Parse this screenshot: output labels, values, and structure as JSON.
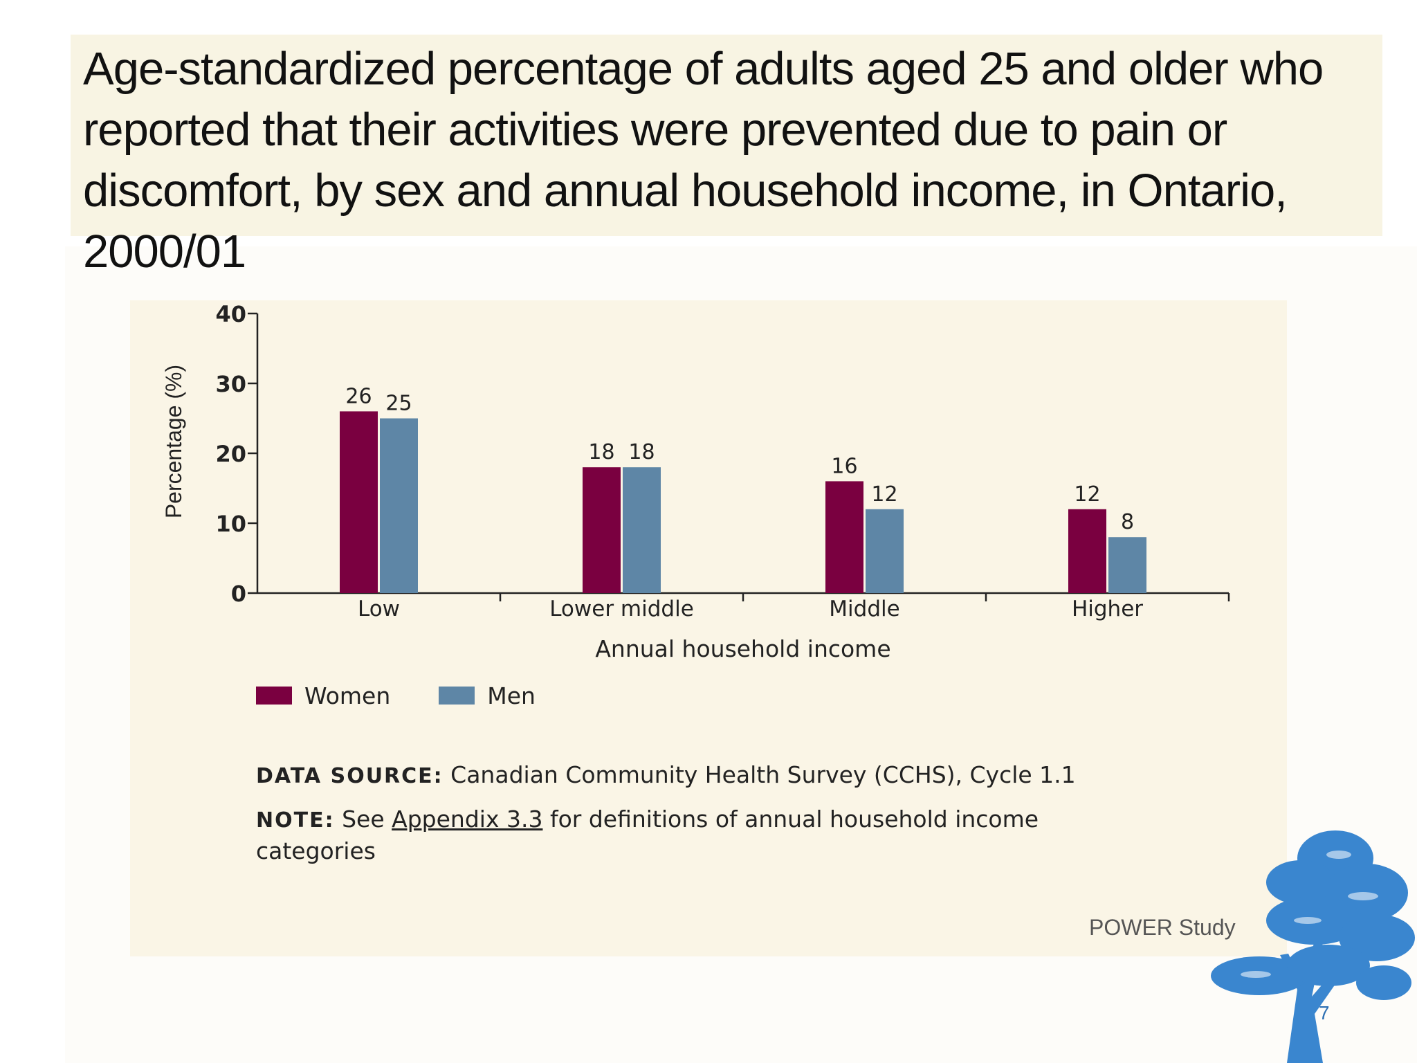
{
  "title": "Age-standardized percentage of adults aged 25 and older who reported that their activities were prevented due to pain or discomfort, by sex and annual household income, in Ontario, 2000/01",
  "colors": {
    "women": "#7a0040",
    "men": "#5e86a6",
    "title_bg": "#f8f4e3",
    "panel_bg": "#faf5e6",
    "tree": "#3a86cf"
  },
  "chart_data": {
    "type": "bar",
    "title": "",
    "categories": [
      "Low",
      "Lower middle",
      "Middle",
      "Higher"
    ],
    "series": [
      {
        "name": "Women",
        "values": [
          26,
          18,
          16,
          12
        ]
      },
      {
        "name": "Men",
        "values": [
          25,
          18,
          12,
          8
        ]
      }
    ],
    "xlabel": "Annual household income",
    "ylabel": "Percentage (%)",
    "ylim": [
      0,
      40
    ],
    "yticks": [
      0,
      10,
      20,
      30,
      40
    ],
    "data_labels": true,
    "legend": "bottom-left"
  },
  "legend": {
    "women": "Women",
    "men": "Men"
  },
  "source": {
    "label": "DATA SOURCE:",
    "text": "Canadian Community Health Survey (CCHS), Cycle 1.1"
  },
  "note": {
    "label": "NOTE:",
    "pre": "See",
    "link": "Appendix 3.3",
    "post": "for definitions of annual household income categories"
  },
  "footer": {
    "brand": "POWER Study",
    "page": "7"
  },
  "icons": {
    "tree": "tree-logo-icon"
  }
}
